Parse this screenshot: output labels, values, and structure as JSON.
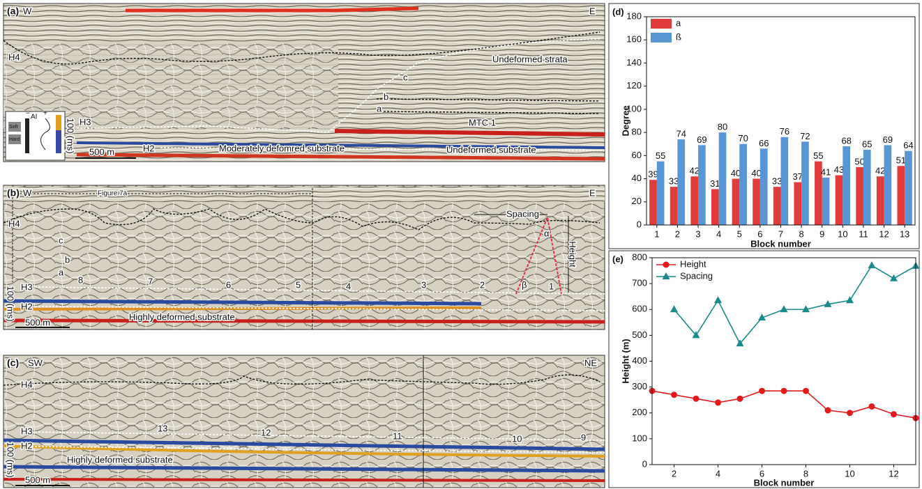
{
  "panel_a": {
    "label": "(a)",
    "left": "W",
    "right": "E",
    "h4": "H4",
    "h3": "H3",
    "h2": "H2",
    "undeformed_strata": "Undeformed strata",
    "c": "c",
    "b": "b",
    "a": "a",
    "mtc": "MTC 1",
    "moderate": "Moderately defomred substrate",
    "undeformed_substrate": "Undeformed substrate",
    "scale": "500 m",
    "time": "100 (ms)",
    "ai": "AI",
    "soft": "Soft",
    "hard": "Hard",
    "minus": "−",
    "plus": "+"
  },
  "panel_b": {
    "label": "(b)",
    "left": "W",
    "right": "E",
    "figure_ref": "Figure 7a",
    "h4": "H4",
    "h3": "H3",
    "h2": "H2",
    "c": "c",
    "b": "b",
    "a": "a",
    "spacing": "Spacing",
    "height": "Height",
    "alpha": "α",
    "beta": "β",
    "blocks": [
      "8",
      "7",
      "6",
      "5",
      "4",
      "3",
      "2",
      "1"
    ],
    "substrate": "Highly deformed substrate",
    "scale": "500 m",
    "time": "100 (ms)"
  },
  "panel_c": {
    "label": "(c)",
    "left": "SW",
    "right": "NE",
    "h4": "H4",
    "h3": "H3",
    "h2": "H2",
    "blocks": [
      "13",
      "12",
      "11",
      "10",
      "9"
    ],
    "substrate": "Highly deformed substrate",
    "scale": "500 m",
    "time": "100 (ms)"
  },
  "chart_data": [
    {
      "type": "bar",
      "label": "(d)",
      "x_label": "Block number",
      "y_label": "Degree",
      "categories": [
        "1",
        "2",
        "3",
        "4",
        "5",
        "6",
        "7",
        "8",
        "9",
        "10",
        "11",
        "12",
        "13"
      ],
      "series": [
        {
          "name": "a",
          "color": "#e23b3b",
          "values": [
            39,
            33,
            42,
            31,
            40,
            40,
            33,
            37,
            55,
            43,
            50,
            42,
            51
          ]
        },
        {
          "name": "ß",
          "color": "#5b96d4",
          "values": [
            55,
            74,
            69,
            80,
            70,
            66,
            76,
            72,
            41,
            68,
            65,
            69,
            64
          ]
        }
      ],
      "ylim": [
        0,
        180
      ],
      "yticks": [
        0,
        20,
        40,
        60,
        80,
        100,
        120,
        140,
        160,
        180
      ],
      "legend": "top-left"
    },
    {
      "type": "line",
      "label": "(e)",
      "x_label": "Block number",
      "y_label": "Height (m)",
      "x": [
        1,
        2,
        3,
        4,
        5,
        6,
        7,
        8,
        9,
        10,
        11,
        12,
        13
      ],
      "series": [
        {
          "name": "Height",
          "color": "#e31a1c",
          "marker": "circle",
          "values": [
            285,
            270,
            255,
            240,
            255,
            285,
            285,
            285,
            210,
            200,
            225,
            195,
            180
          ]
        },
        {
          "name": "Spacing",
          "color": "#1a8a8a",
          "marker": "triangle",
          "values": [
            null,
            600,
            500,
            635,
            468,
            568,
            600,
            600,
            620,
            635,
            770,
            720,
            768
          ]
        }
      ],
      "xlim": [
        1,
        13
      ],
      "xticks": [
        2,
        4,
        6,
        8,
        10,
        12
      ],
      "ylim": [
        0,
        800
      ],
      "yticks": [
        0,
        100,
        200,
        300,
        400,
        500,
        600,
        700,
        800
      ],
      "legend": "top-left"
    }
  ]
}
